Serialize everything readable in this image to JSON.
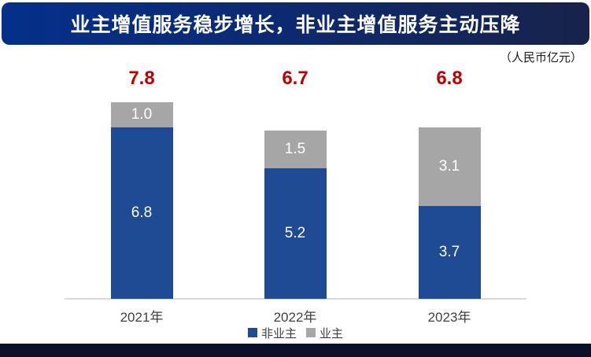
{
  "banner": {
    "title": "业主增值服务稳步增长，非业主增值服务主动压降"
  },
  "unit_note": "（人民币亿元）",
  "chart_data": {
    "type": "bar",
    "stacked": true,
    "title": "业主增值服务稳步增长，非业主增值服务主动压降",
    "unit": "人民币亿元",
    "categories": [
      "2021年",
      "2022年",
      "2023年"
    ],
    "series": [
      {
        "name": "非业主",
        "color": "#1f4b94",
        "values": [
          6.8,
          5.2,
          3.7
        ]
      },
      {
        "name": "业主",
        "color": "#a6a6a6",
        "values": [
          1.0,
          1.5,
          3.1
        ]
      }
    ],
    "totals": [
      "7.8",
      "6.7",
      "6.8"
    ],
    "totals_color": "#c00000",
    "legend_position": "bottom",
    "grid": false,
    "ylim": [
      0,
      8.5
    ]
  },
  "colors": {
    "banner_gradient_left": "#04308a",
    "banner_gradient_right": "#17234a",
    "axis_line": "#d9d9d9",
    "x_label": "#404040",
    "bottom_strip": "#0a102a",
    "bar_label_text": "#ffffff"
  }
}
